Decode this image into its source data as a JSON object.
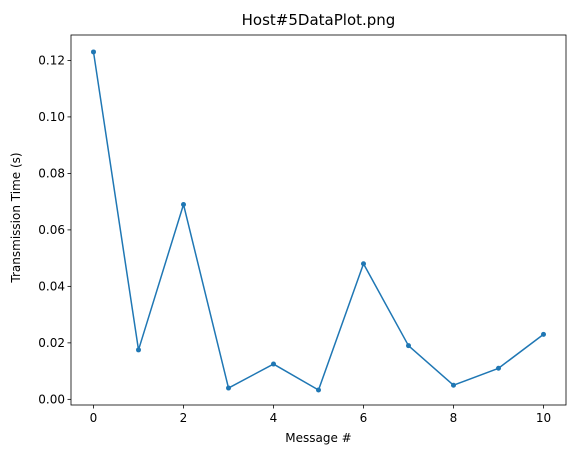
{
  "chart_data": {
    "type": "line",
    "title": "Host#5DataPlot.png",
    "xlabel": "Message #",
    "ylabel": "Transmission Time (s)",
    "xlim": [
      -0.5,
      10.5
    ],
    "ylim": [
      -0.002,
      0.129
    ],
    "xticks": [
      0,
      2,
      4,
      6,
      8,
      10
    ],
    "xtick_labels": [
      "0",
      "2",
      "4",
      "6",
      "8",
      "10"
    ],
    "yticks": [
      0.0,
      0.02,
      0.04,
      0.06,
      0.08,
      0.1,
      0.12
    ],
    "ytick_labels": [
      "0.00",
      "0.02",
      "0.04",
      "0.06",
      "0.08",
      "0.10",
      "0.12"
    ],
    "grid": false,
    "series": [
      {
        "color": "#1f77b4",
        "x": [
          0,
          1,
          2,
          3,
          4,
          5,
          6,
          7,
          8,
          9,
          10
        ],
        "y": [
          0.123,
          0.0175,
          0.069,
          0.004,
          0.0125,
          0.0033,
          0.048,
          0.019,
          0.005,
          0.011,
          0.023
        ]
      }
    ]
  }
}
